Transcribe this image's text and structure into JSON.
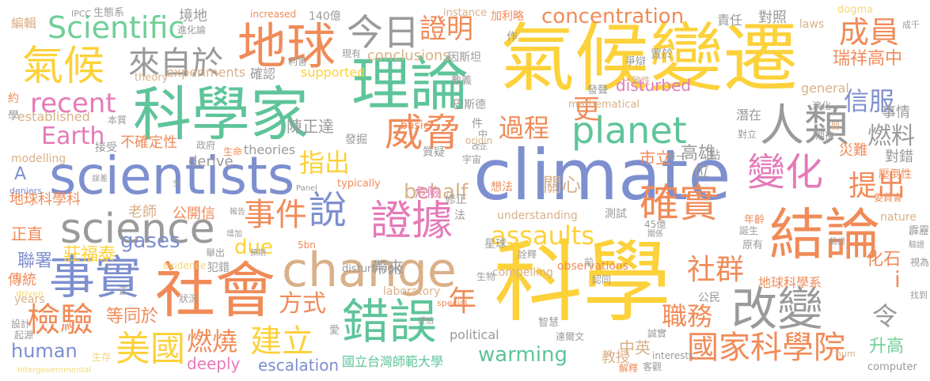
{
  "colors": {
    "background": "#ffffff",
    "yellow": "#fcd13a",
    "green": "#6fcf97",
    "teal": "#5ec49a",
    "orange": "#f08b58",
    "blue": "#7d8fcf",
    "pink": "#e57ab8",
    "grey": "#9a9a9a",
    "tan": "#d9b088",
    "lightyellow": "#f3d77a"
  },
  "words": {
    "w001": "climate",
    "w002": "科學",
    "w003": "氣候變遷",
    "w004": "科學家",
    "w005": "理論",
    "w006": "scientists",
    "w007": "change",
    "w008": "地球",
    "w009": "社會",
    "w010": "結論",
    "w011": "錯誤",
    "w012": "事實",
    "w013": "氣候",
    "w014": "planet",
    "w015": "science",
    "w016": "人類",
    "w017": "證據",
    "w018": "改變",
    "w019": "威脅",
    "w020": "確實",
    "w021": "變化",
    "w022": "Scientific",
    "w023": "今日",
    "w024": "來自於",
    "w025": "事件",
    "w026": "說",
    "w027": "國家科學院",
    "w028": "美國",
    "w029": "檢驗",
    "w030": "建立",
    "w031": "concentration",
    "w032": "recent",
    "w033": "Earth",
    "w034": "證明",
    "w035": "過程",
    "w036": "指出",
    "w037": "assaults",
    "w038": "warming",
    "w039": "成員",
    "w040": "信服",
    "w041": "提出",
    "w042": "社群",
    "w043": "方式",
    "w044": "human",
    "w045": "gases",
    "w046": "behalf",
    "w047": "due",
    "w048": "年",
    "w049": "燃燒",
    "w050": "職務",
    "w051": "更",
    "w052": "燃料",
    "w053": "關心",
    "w054": "高雄",
    "w055": "市立",
    "w056": "瑞祥高中",
    "w057": "對錯",
    "w058": "事情",
    "w059": "地球科學科",
    "w060": "不確定性",
    "w061": "陳正達",
    "w062": "老師",
    "w063": "公開信",
    "w064": "莊福泰",
    "w065": "聯署",
    "w066": "正直",
    "w067": "傳統",
    "w068": "等同於",
    "w069": "升高",
    "w070": "中英",
    "w071": "教授",
    "w072": "國立台灣師範大學",
    "w073": "escalation",
    "w074": "deeply",
    "w075": "地球科學系",
    "w076": "化石",
    "w077": "令",
    "w078": "i",
    "w079": "A",
    "w080": "公民",
    "w081": "災難",
    "w082": "位",
    "w083": "帶來",
    "w084": "危險",
    "w085": "disturbed",
    "w086": "conclusions",
    "w087": "supported",
    "w088": "established",
    "w089": "experiments",
    "w090": "theory",
    "w091": "確認",
    "w092": "basic",
    "w093": "theories",
    "w094": "derive",
    "w095": "modelling",
    "w096": "understanding",
    "w097": "observations",
    "w098": "compelling",
    "w099": "political",
    "w100": "laboratory",
    "w101": "special",
    "w102": "evidence",
    "w103": "disturbingly",
    "w104": "typically",
    "w105": "mathematical",
    "w106": "general",
    "w107": "instance",
    "w108": "origin",
    "w109": "interests",
    "w110": "computer",
    "w111": "nature",
    "w112": "years",
    "w113": "dogma",
    "w114": "laws",
    "w115": "increased",
    "w116": "140億",
    "w117": "IPCC",
    "w118": "生態系",
    "w119": "境地",
    "w120": "進化論",
    "w121": "編輯",
    "w122": "約",
    "w123": "學",
    "w124": "本質",
    "w125": "接受",
    "w126": "政府",
    "w127": "生命",
    "w128": "加利略",
    "w129": "作",
    "w130": "爭辯",
    "w131": "一致性",
    "w132": "教義",
    "w133": "利害",
    "w134": "現有",
    "w135": "因斯坦",
    "w136": "巴斯德",
    "w137": "責任",
    "w138": "對照",
    "w139": "置於",
    "w140": "發聲",
    "w141": "潛在",
    "w142": "演化",
    "w143": "期待",
    "w144": "對立",
    "w145": "單一",
    "w146": "點",
    "w147": "間",
    "w148": "壓倒性",
    "w149": "發掘",
    "w150": "質疑",
    "w151": "修正",
    "w152": "宇宙",
    "w153": "改正",
    "w154": "中",
    "w155": "件",
    "w156": "想法",
    "w157": "法",
    "w158": "測試",
    "w159": "年齡",
    "w160": "誕生",
    "w161": "45億",
    "w162": "關係",
    "w163": "原有",
    "w164": "委員會",
    "w165": "霹靂",
    "w166": "驗證",
    "w167": "視為",
    "w168": "找到",
    "w169": "星球",
    "w170": "詮釋",
    "w171": "前",
    "w172": "生物",
    "w173": "認同",
    "w174": "智慧",
    "w175": "誠實",
    "w176": "達爾文",
    "w177": "解釋",
    "w178": "客觀",
    "w179": "hum",
    "w180": "5bn",
    "w181": "狀況",
    "w182": "犯錯",
    "w183": "舉出",
    "w184": "預期",
    "w185": "設計",
    "w186": "起源",
    "w187": "生存",
    "w188": "愛",
    "w189": "正",
    "w190": "Intergovernmental",
    "w191": "deniers",
    "w192": "driven",
    "w193": "Panel",
    "w194": "誤差",
    "w195": "全",
    "w196": "報告",
    "w197": "增加",
    "w198": "成千",
    "w199": "評估",
    "w200": "驗證"
  }
}
